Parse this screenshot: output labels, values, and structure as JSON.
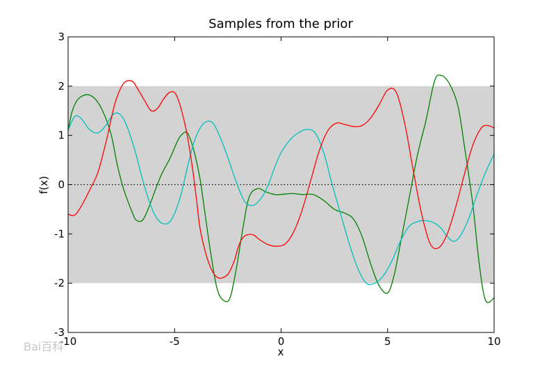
{
  "chart_data": {
    "type": "line",
    "title": "Samples from the prior",
    "xlabel": "x",
    "ylabel": "f(x)",
    "xlim": [
      -10,
      10
    ],
    "ylim": [
      -3,
      3
    ],
    "xticks": [
      -10,
      -5,
      0,
      5,
      10
    ],
    "xtick_labels": [
      "-10",
      "-5",
      "0",
      "5",
      "10"
    ],
    "yticks": [
      -3,
      -2,
      -1,
      0,
      1,
      2,
      3
    ],
    "ytick_labels": [
      "-3",
      "-2",
      "-1",
      "0",
      "1",
      "2",
      "3"
    ],
    "grid": false,
    "band": {
      "y_low": -2,
      "y_high": 2,
      "color": "#d3d3d3"
    },
    "mean_line": {
      "y": 0,
      "style": "dotted",
      "color": "#000000"
    },
    "series": [
      {
        "color": "#008000",
        "x": [
          -10,
          -9.8,
          -9.5,
          -9.0,
          -8.5,
          -8.0,
          -7.7,
          -7.4,
          -7.0,
          -6.8,
          -6.5,
          -6.2,
          -5.9,
          -5.6,
          -5.2,
          -4.9,
          -4.7,
          -4.4,
          -4.1,
          -3.8,
          -3.6,
          -3.3,
          -3.0,
          -2.7,
          -2.4,
          -2.1,
          -1.8,
          -1.5,
          -1.1,
          -0.7,
          -0.3,
          0,
          0.5,
          1.0,
          1.5,
          2.0,
          2.5,
          3.0,
          3.4,
          3.8,
          4.2,
          4.6,
          5.0,
          5.3,
          5.6,
          6.0,
          6.4,
          6.8,
          7.2,
          7.5,
          7.9,
          8.3,
          8.6,
          9.0,
          9.3,
          9.6,
          10
        ],
        "y": [
          1.1,
          1.5,
          1.75,
          1.82,
          1.6,
          1.05,
          0.42,
          -0.08,
          -0.55,
          -0.72,
          -0.72,
          -0.45,
          -0.1,
          0.22,
          0.55,
          0.85,
          1.0,
          1.05,
          0.7,
          0.1,
          -0.5,
          -1.4,
          -2.12,
          -2.35,
          -2.3,
          -1.7,
          -0.9,
          -0.25,
          -0.08,
          -0.15,
          -0.2,
          -0.2,
          -0.18,
          -0.2,
          -0.2,
          -0.32,
          -0.5,
          -0.58,
          -0.7,
          -1.05,
          -1.6,
          -2.05,
          -2.2,
          -1.85,
          -1.2,
          -0.3,
          0.6,
          1.3,
          2.1,
          2.22,
          2.05,
          1.6,
          0.8,
          -0.4,
          -1.6,
          -2.35,
          -2.3
        ]
      },
      {
        "color": "#00bfbf",
        "x": [
          -10,
          -9.7,
          -9.4,
          -9.0,
          -8.6,
          -8.2,
          -7.9,
          -7.6,
          -7.3,
          -6.9,
          -6.5,
          -6.1,
          -5.7,
          -5.3,
          -5.0,
          -4.7,
          -4.4,
          -4.1,
          -3.8,
          -3.5,
          -3.2,
          -2.9,
          -2.5,
          -2.1,
          -1.7,
          -1.3,
          -0.9,
          -0.6,
          -0.3,
          0,
          0.4,
          0.8,
          1.2,
          1.6,
          2.0,
          2.4,
          2.8,
          3.2,
          3.6,
          4.0,
          4.4,
          4.8,
          5.2,
          5.6,
          6.0,
          6.4,
          6.8,
          7.2,
          7.5,
          7.8,
          8.1,
          8.4,
          8.8,
          9.2,
          9.6,
          10
        ],
        "y": [
          1.1,
          1.38,
          1.35,
          1.12,
          1.05,
          1.22,
          1.42,
          1.44,
          1.25,
          0.75,
          0.1,
          -0.45,
          -0.75,
          -0.78,
          -0.58,
          -0.2,
          0.35,
          0.85,
          1.15,
          1.28,
          1.25,
          1.0,
          0.55,
          0.05,
          -0.35,
          -0.42,
          -0.25,
          0.0,
          0.35,
          0.65,
          0.9,
          1.05,
          1.12,
          1.05,
          0.65,
          0.0,
          -0.6,
          -1.2,
          -1.7,
          -2.0,
          -2.0,
          -1.85,
          -1.55,
          -1.15,
          -0.85,
          -0.75,
          -0.73,
          -0.78,
          -0.88,
          -1.05,
          -1.15,
          -1.05,
          -0.7,
          -0.2,
          0.25,
          0.62
        ]
      },
      {
        "color": "#ff0000",
        "x": [
          -10,
          -9.7,
          -9.4,
          -9.0,
          -8.6,
          -8.2,
          -7.8,
          -7.4,
          -7.0,
          -6.7,
          -6.4,
          -6.1,
          -5.8,
          -5.5,
          -5.2,
          -4.9,
          -4.5,
          -4.2,
          -4.0,
          -3.8,
          -3.5,
          -3.2,
          -2.9,
          -2.5,
          -2.2,
          -2.0,
          -1.8,
          -1.6,
          -1.3,
          -1.0,
          -0.6,
          -0.2,
          0.2,
          0.6,
          1.0,
          1.4,
          1.8,
          2.2,
          2.6,
          3.0,
          3.4,
          3.8,
          4.2,
          4.6,
          5.0,
          5.4,
          5.8,
          6.2,
          6.6,
          7.0,
          7.4,
          7.8,
          8.2,
          8.6,
          9.0,
          9.4,
          9.7,
          10
        ],
        "y": [
          -0.6,
          -0.62,
          -0.45,
          -0.12,
          0.25,
          0.9,
          1.65,
          2.05,
          2.1,
          1.92,
          1.7,
          1.5,
          1.55,
          1.75,
          1.88,
          1.8,
          1.2,
          0.45,
          -0.2,
          -0.9,
          -1.45,
          -1.78,
          -1.9,
          -1.82,
          -1.55,
          -1.25,
          -1.08,
          -1.02,
          -1.02,
          -1.12,
          -1.22,
          -1.25,
          -1.2,
          -0.95,
          -0.5,
          0.1,
          0.7,
          1.1,
          1.25,
          1.22,
          1.18,
          1.2,
          1.35,
          1.62,
          1.92,
          1.88,
          1.25,
          0.3,
          -0.6,
          -1.2,
          -1.28,
          -1.0,
          -0.45,
          0.2,
          0.8,
          1.15,
          1.2,
          1.15
        ]
      }
    ]
  },
  "watermark": "Bai百科"
}
